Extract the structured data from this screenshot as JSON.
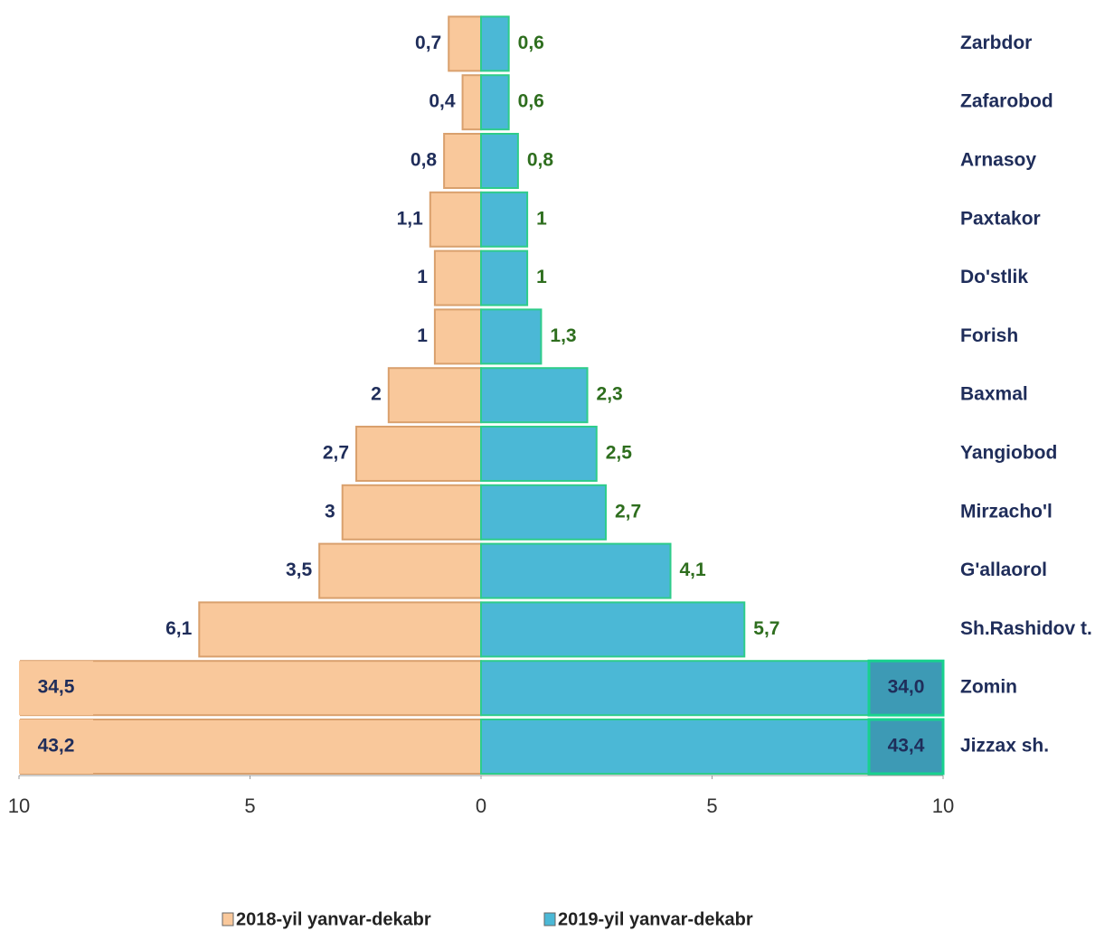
{
  "chart_data": {
    "type": "butterfly-bar",
    "categories": [
      "Zarbdor",
      "Zafarobod",
      "Arnasoy",
      "Paxtakor",
      "Do'stlik",
      "Forish",
      "Baxmal",
      "Yangiobod",
      "Mirzacho'l",
      "G'allaorol",
      "Sh.Rashidov  t.",
      "Zomin",
      "Jizzax sh."
    ],
    "series": [
      {
        "name": "2018-yil yanvar-dekabr",
        "color": "#f9c89b",
        "values": [
          0.7,
          0.4,
          0.8,
          1.1,
          1,
          1,
          2,
          2.7,
          3,
          3.5,
          6.1,
          34.5,
          43.2
        ],
        "value_labels": [
          "0,7",
          "0,4",
          "0,8",
          "1,1",
          "1",
          "1",
          "2",
          "2,7",
          "3",
          "3,5",
          "6,1",
          "34,5",
          "43,2"
        ]
      },
      {
        "name": "2019-yil yanvar-dekabr",
        "color": "#4bb8d6",
        "values": [
          0.6,
          0.6,
          0.8,
          1,
          1,
          1.3,
          2.3,
          2.5,
          2.7,
          4.1,
          5.7,
          34.0,
          43.4
        ],
        "value_labels": [
          "0,6",
          "0,6",
          "0,8",
          "1",
          "1",
          "1,3",
          "2,3",
          "2,5",
          "2,7",
          "4,1",
          "5,7",
          "34,0",
          "43,4"
        ]
      }
    ],
    "xlim": [
      0,
      10
    ],
    "xticks": [
      0,
      5,
      10
    ]
  }
}
